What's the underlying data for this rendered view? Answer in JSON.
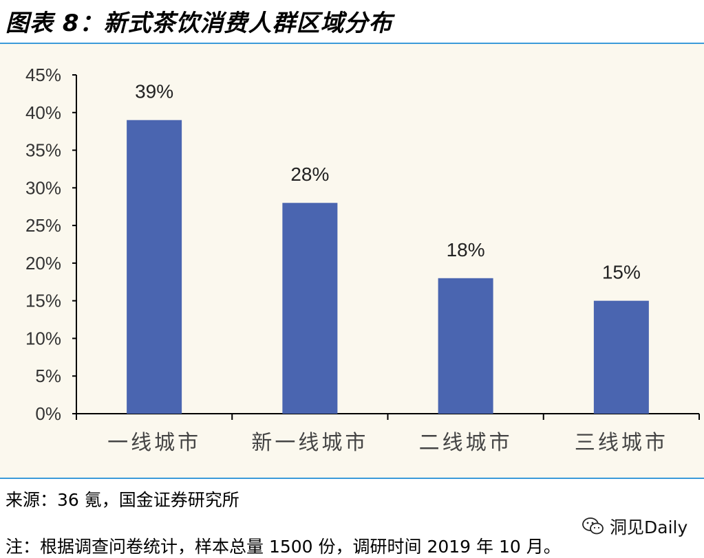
{
  "figure": {
    "title": "图表 8：新式茶饮消费人群区域分布"
  },
  "chart_data": {
    "type": "bar",
    "categories": [
      "一线城市",
      "新一线城市",
      "二线城市",
      "三线城市"
    ],
    "values": [
      39,
      28,
      18,
      15
    ],
    "value_labels": [
      "39%",
      "28%",
      "18%",
      "15%"
    ],
    "ylim": [
      0,
      45
    ],
    "yticks": [
      0,
      5,
      10,
      15,
      20,
      25,
      30,
      35,
      40,
      45
    ],
    "ytick_labels": [
      "0%",
      "5%",
      "10%",
      "15%",
      "20%",
      "25%",
      "30%",
      "35%",
      "40%",
      "45%"
    ],
    "grid": false,
    "legend": "none",
    "bar_color": "#4a65b0"
  },
  "source": "来源：36 氪，国金证券研究所",
  "note": "注：根据调查问卷统计，样本总量 1500 份，调研时间 2019 年 10 月。",
  "watermark": {
    "text": "洞见Daily",
    "icon": "wechat-icon"
  },
  "colors": {
    "accent_rule": "#3a9ad9",
    "panel_bg": "#fbf8ee"
  }
}
